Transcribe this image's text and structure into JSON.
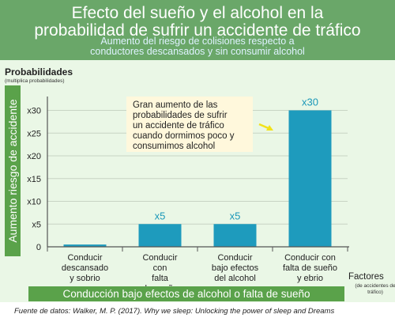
{
  "header": {
    "title_line1": "Efecto del sueño y el alcohol en la",
    "title_line2": "probabilidad de sufrir un accidente de tráfico",
    "subtitle_line1": "Aumento del riesgo de colisiones respecto a",
    "subtitle_line2": "conductores descansados y sin consumir alcohol"
  },
  "axis": {
    "y_side_label": "Aumento riesgo de accidente",
    "y_title": "Probabilidades",
    "y_title_sub": "(multiplica probabilidades)",
    "x_title": "Factores",
    "x_title_sub": "(de accidentes de tráfico)",
    "x_band_label": "Conducción bajo efectos de alcohol o falta de sueño"
  },
  "annotation": {
    "lines": [
      "Gran aumento de las",
      "probabilidades de sufrir",
      "un accidente de tráfico",
      "cuando dormimos poco y",
      "consumimos alcohol"
    ]
  },
  "source": "Fuente de datos: Walker, M. P. (2017). Why we sleep: Unlocking the power of sleep and Dreams",
  "chart_data": {
    "type": "bar",
    "categories": [
      [
        "Conducir",
        "descansado",
        "y sobrio"
      ],
      [
        "Conducir",
        "con",
        "falta",
        "de sueño"
      ],
      [
        "Conducir",
        "bajo efectos",
        "del alcohol"
      ],
      [
        "Conducir con",
        "falta de sueño",
        "y ebrio"
      ]
    ],
    "values": [
      0.5,
      5,
      5,
      30
    ],
    "data_labels": [
      "",
      "x5",
      "x5",
      "x30"
    ],
    "yticks": [
      0,
      5,
      10,
      15,
      20,
      25,
      30
    ],
    "ytick_labels": [
      "0",
      "x5",
      "x10",
      "x15",
      "x20",
      "x25",
      "x30"
    ],
    "ylim": [
      0,
      32
    ],
    "grid": "horizontal",
    "colors": {
      "bar": "#1e9bbd",
      "grid": "#c8d4c4",
      "axis": "#555555",
      "arrow": "#f2e21a",
      "annotation_bg": "#fff8dc"
    }
  }
}
